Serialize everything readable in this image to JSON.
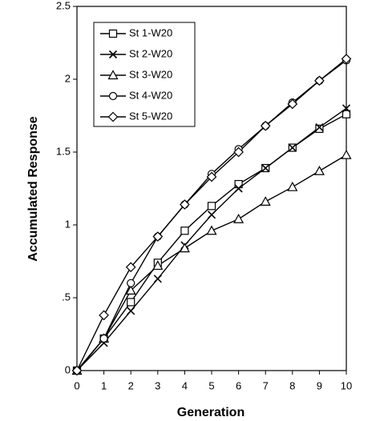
{
  "chart_data": {
    "type": "line",
    "x_label": "Generation",
    "y_label": "Accumulated Response",
    "x": [
      0,
      1,
      2,
      3,
      4,
      5,
      6,
      7,
      8,
      9,
      10
    ],
    "xlim": [
      0,
      10
    ],
    "xticks": [
      0,
      1,
      2,
      3,
      4,
      5,
      6,
      7,
      8,
      9,
      10
    ],
    "ylim": [
      0,
      2.5
    ],
    "yticks": [
      0,
      {
        "value": 0.5,
        "label": ".5"
      },
      1,
      1.5,
      2,
      2.5
    ],
    "legend": "upper left",
    "series": [
      {
        "name": "St 1-W20",
        "color": "#000000",
        "marker": "square",
        "values": [
          0,
          0.22,
          0.47,
          0.74,
          0.96,
          1.13,
          1.28,
          1.39,
          1.53,
          1.66,
          1.76
        ]
      },
      {
        "name": "St 2-W20",
        "color": "#000000",
        "marker": "x",
        "values": [
          0,
          0.19,
          0.41,
          0.63,
          0.86,
          1.07,
          1.25,
          1.39,
          1.53,
          1.67,
          1.8
        ]
      },
      {
        "name": "St 3-W20",
        "color": "#000000",
        "marker": "triangle",
        "values": [
          0,
          0.22,
          0.55,
          0.72,
          0.84,
          0.96,
          1.04,
          1.16,
          1.26,
          1.37,
          1.48
        ]
      },
      {
        "name": "St 4-W20",
        "color": "#000000",
        "marker": "circle",
        "values": [
          0,
          0.22,
          0.6,
          0.92,
          1.14,
          1.35,
          1.52,
          1.68,
          1.84,
          1.99,
          2.13
        ]
      },
      {
        "name": "St 5-W20",
        "color": "#000000",
        "marker": "diamond",
        "values": [
          0,
          0.38,
          0.71,
          0.92,
          1.14,
          1.33,
          1.5,
          1.68,
          1.83,
          1.99,
          2.14
        ]
      }
    ]
  }
}
